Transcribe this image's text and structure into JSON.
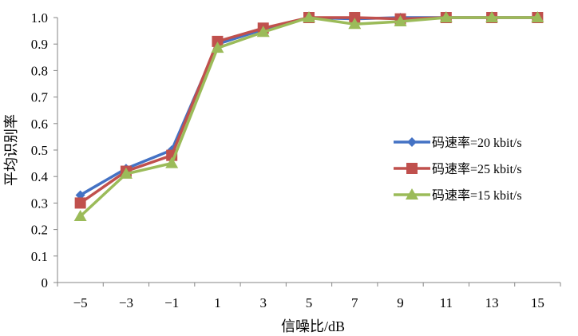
{
  "chart_data": {
    "type": "line",
    "title": "",
    "xlabel": "信噪比/dB",
    "ylabel": "平均识别率",
    "categories": [
      "−5",
      "−3",
      "−1",
      "1",
      "3",
      "5",
      "7",
      "9",
      "11",
      "13",
      "15"
    ],
    "ylim": [
      0,
      1.0
    ],
    "yticks": [
      "0",
      "0.1",
      "0.2",
      "0.3",
      "0.4",
      "0.5",
      "0.6",
      "0.7",
      "0.8",
      "0.9",
      "1.0"
    ],
    "grid": false,
    "legend_position": "right",
    "series": [
      {
        "name": "码速率=20 kbit/s",
        "marker": "diamond",
        "color": "#4472C4",
        "values": [
          0.33,
          0.43,
          0.5,
          0.9,
          0.955,
          1.0,
          0.995,
          1.0,
          1.0,
          1.0,
          1.0
        ]
      },
      {
        "name": "码速率=25 kbit/s",
        "marker": "square",
        "color": "#C0504D",
        "values": [
          0.3,
          0.42,
          0.48,
          0.91,
          0.96,
          1.0,
          1.0,
          0.995,
          1.0,
          1.0,
          1.0
        ]
      },
      {
        "name": "码速率=15 kbit/s",
        "marker": "triangle",
        "color": "#9BBB59",
        "values": [
          0.25,
          0.41,
          0.45,
          0.885,
          0.945,
          1.0,
          0.975,
          0.985,
          1.0,
          1.0,
          1.0
        ]
      }
    ]
  }
}
